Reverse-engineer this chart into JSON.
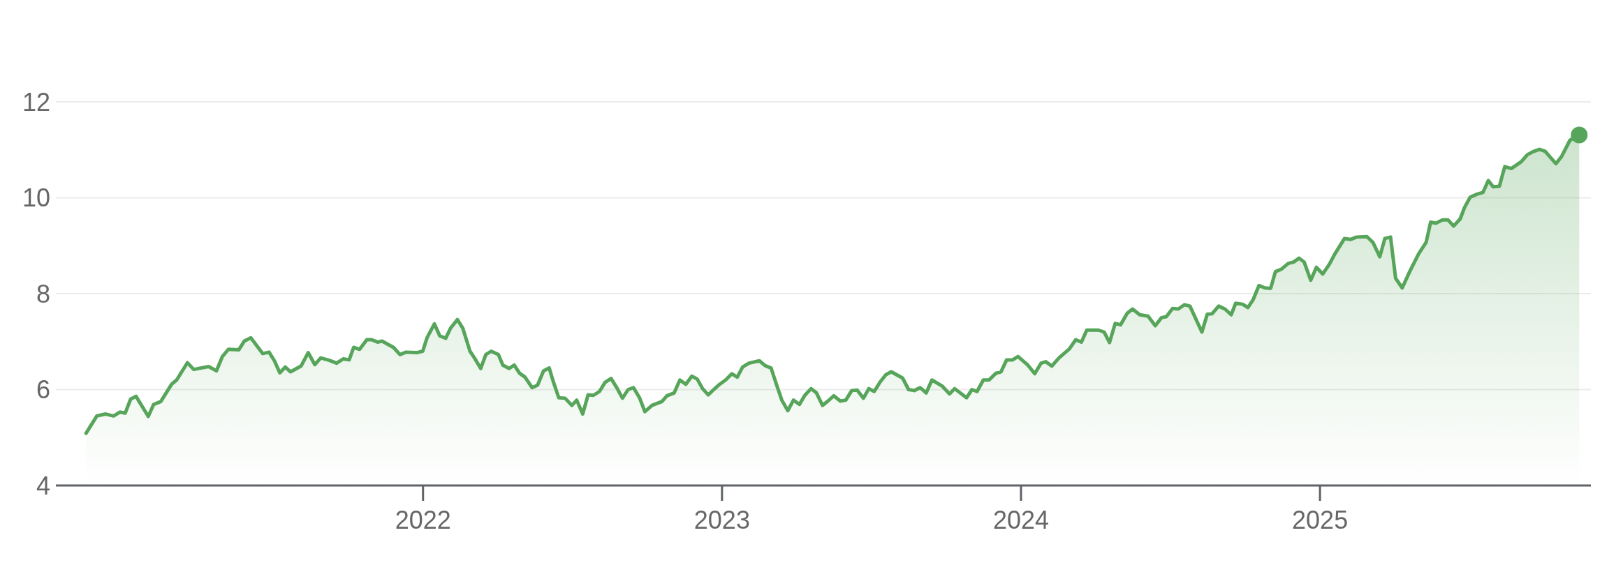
{
  "chart_data": {
    "type": "area",
    "x": [
      2020.873,
      2020.909,
      2020.939,
      2020.965,
      2020.986,
      2021.004,
      2021.022,
      2021.04,
      2021.081,
      2021.099,
      2021.123,
      2021.159,
      2021.176,
      2021.212,
      2021.233,
      2021.283,
      2021.309,
      2021.329,
      2021.349,
      2021.384,
      2021.402,
      2021.424,
      2021.464,
      2021.485,
      2021.503,
      2021.521,
      2021.539,
      2021.557,
      2021.592,
      2021.616,
      2021.638,
      2021.658,
      2021.687,
      2021.711,
      2021.733,
      2021.753,
      2021.768,
      2021.788,
      2021.812,
      2021.828,
      2021.848,
      2021.863,
      2021.901,
      2021.923,
      2021.943,
      2021.979,
      2021.999,
      2022.014,
      2022.038,
      2022.056,
      2022.076,
      2022.092,
      2022.115,
      2022.133,
      2022.157,
      2022.172,
      2022.193,
      2022.21,
      2022.228,
      2022.252,
      2022.267,
      2022.288,
      2022.305,
      2022.323,
      2022.341,
      2022.365,
      2022.383,
      2022.403,
      2022.422,
      2022.435,
      2022.454,
      2022.475,
      2022.498,
      2022.514,
      2022.534,
      2022.552,
      2022.57,
      2022.59,
      2022.609,
      2022.629,
      2022.647,
      2022.667,
      2022.686,
      2022.704,
      2022.724,
      2022.742,
      2022.766,
      2022.799,
      2022.816,
      2022.84,
      2022.859,
      2022.879,
      2022.899,
      2022.917,
      2022.935,
      2022.954,
      2022.974,
      2022.992,
      2023.012,
      2023.033,
      2023.051,
      2023.069,
      2023.09,
      2023.125,
      2023.144,
      2023.164,
      2023.182,
      2023.2,
      2023.22,
      2023.239,
      2023.259,
      2023.277,
      2023.298,
      2023.316,
      2023.336,
      2023.354,
      2023.374,
      2023.396,
      2023.414,
      2023.434,
      2023.452,
      2023.473,
      2023.491,
      2023.509,
      2023.529,
      2023.548,
      2023.566,
      2023.604,
      2023.624,
      2023.643,
      2023.663,
      2023.683,
      2023.702,
      2023.737,
      2023.761,
      2023.778,
      2023.818,
      2023.836,
      2023.853,
      2023.874,
      2023.893,
      2023.916,
      2023.933,
      2023.952,
      2023.972,
      2023.99,
      2024.023,
      2024.046,
      2024.067,
      2024.083,
      2024.103,
      2024.127,
      2024.162,
      2024.183,
      2024.202,
      2024.22,
      2024.259,
      2024.278,
      2024.296,
      2024.315,
      2024.333,
      2024.355,
      2024.373,
      2024.397,
      2024.425,
      2024.449,
      2024.47,
      2024.486,
      2024.507,
      2024.526,
      2024.547,
      2024.565,
      2024.605,
      2024.623,
      2024.639,
      2024.661,
      2024.682,
      2024.703,
      2024.718,
      2024.741,
      2024.759,
      2024.776,
      2024.796,
      2024.816,
      2024.835,
      2024.851,
      2024.871,
      2024.894,
      2024.912,
      2024.93,
      2024.947,
      2024.969,
      2024.988,
      2025.009,
      2025.031,
      2025.049,
      2025.082,
      2025.102,
      2025.122,
      2025.157,
      2025.177,
      2025.2,
      2025.217,
      2025.236,
      2025.253,
      2025.275,
      2025.3,
      2025.33,
      2025.355,
      2025.37,
      2025.388,
      2025.41,
      2025.428,
      2025.447,
      2025.469,
      2025.483,
      2025.502,
      2025.523,
      2025.545,
      2025.563,
      2025.579,
      2025.6,
      2025.618,
      2025.64,
      2025.673,
      2025.694,
      2025.716,
      2025.734,
      2025.753,
      2025.789,
      2025.808,
      2025.836,
      2025.867
    ],
    "series": [
      {
        "color": "#57a55a",
        "values": [
          5.09,
          5.45,
          5.49,
          5.45,
          5.53,
          5.51,
          5.8,
          5.86,
          5.44,
          5.69,
          5.75,
          6.11,
          6.2,
          6.56,
          6.42,
          6.48,
          6.39,
          6.69,
          6.84,
          6.83,
          7.01,
          7.08,
          6.75,
          6.78,
          6.6,
          6.35,
          6.47,
          6.37,
          6.49,
          6.77,
          6.52,
          6.66,
          6.61,
          6.55,
          6.64,
          6.62,
          6.88,
          6.84,
          7.04,
          7.04,
          6.99,
          7.01,
          6.88,
          6.73,
          6.78,
          6.77,
          6.8,
          7.09,
          7.37,
          7.12,
          7.07,
          7.28,
          7.46,
          7.28,
          6.8,
          6.66,
          6.44,
          6.73,
          6.8,
          6.73,
          6.51,
          6.44,
          6.51,
          6.34,
          6.26,
          6.04,
          6.09,
          6.39,
          6.45,
          6.18,
          5.83,
          5.82,
          5.67,
          5.78,
          5.49,
          5.89,
          5.88,
          5.96,
          6.15,
          6.23,
          6.05,
          5.82,
          6.0,
          6.04,
          5.83,
          5.54,
          5.67,
          5.75,
          5.87,
          5.93,
          6.2,
          6.11,
          6.28,
          6.22,
          6.02,
          5.89,
          6.01,
          6.11,
          6.2,
          6.33,
          6.26,
          6.47,
          6.55,
          6.6,
          6.5,
          6.45,
          6.11,
          5.78,
          5.56,
          5.78,
          5.69,
          5.88,
          6.02,
          5.93,
          5.67,
          5.76,
          5.87,
          5.76,
          5.78,
          5.98,
          5.99,
          5.82,
          6.02,
          5.96,
          6.16,
          6.31,
          6.37,
          6.24,
          6.0,
          5.98,
          6.04,
          5.93,
          6.2,
          6.07,
          5.91,
          6.02,
          5.83,
          6.0,
          5.96,
          6.2,
          6.2,
          6.34,
          6.37,
          6.62,
          6.62,
          6.69,
          6.51,
          6.33,
          6.55,
          6.58,
          6.49,
          6.66,
          6.85,
          7.04,
          6.99,
          7.24,
          7.24,
          7.2,
          6.98,
          7.38,
          7.35,
          7.59,
          7.68,
          7.56,
          7.53,
          7.33,
          7.5,
          7.52,
          7.69,
          7.68,
          7.77,
          7.74,
          7.2,
          7.57,
          7.58,
          7.74,
          7.68,
          7.56,
          7.8,
          7.78,
          7.71,
          7.87,
          8.17,
          8.12,
          8.11,
          8.46,
          8.51,
          8.63,
          8.66,
          8.74,
          8.66,
          8.28,
          8.55,
          8.41,
          8.61,
          8.82,
          9.15,
          9.13,
          9.18,
          9.19,
          9.07,
          8.77,
          9.15,
          9.18,
          8.32,
          8.12,
          8.46,
          8.83,
          9.07,
          9.49,
          9.47,
          9.54,
          9.54,
          9.41,
          9.56,
          9.79,
          10.01,
          10.07,
          10.11,
          10.36,
          10.23,
          10.24,
          10.65,
          10.61,
          10.75,
          10.9,
          10.97,
          11.01,
          10.97,
          10.71,
          10.86,
          11.2,
          11.31
        ]
      }
    ],
    "xlim": [
      2020.772,
      2025.906
    ],
    "xticks": [
      2022,
      2023,
      2024,
      2025
    ],
    "ylim": [
      4,
      12
    ],
    "yticks": [
      4,
      6,
      8,
      10,
      12
    ],
    "grid": "y"
  }
}
